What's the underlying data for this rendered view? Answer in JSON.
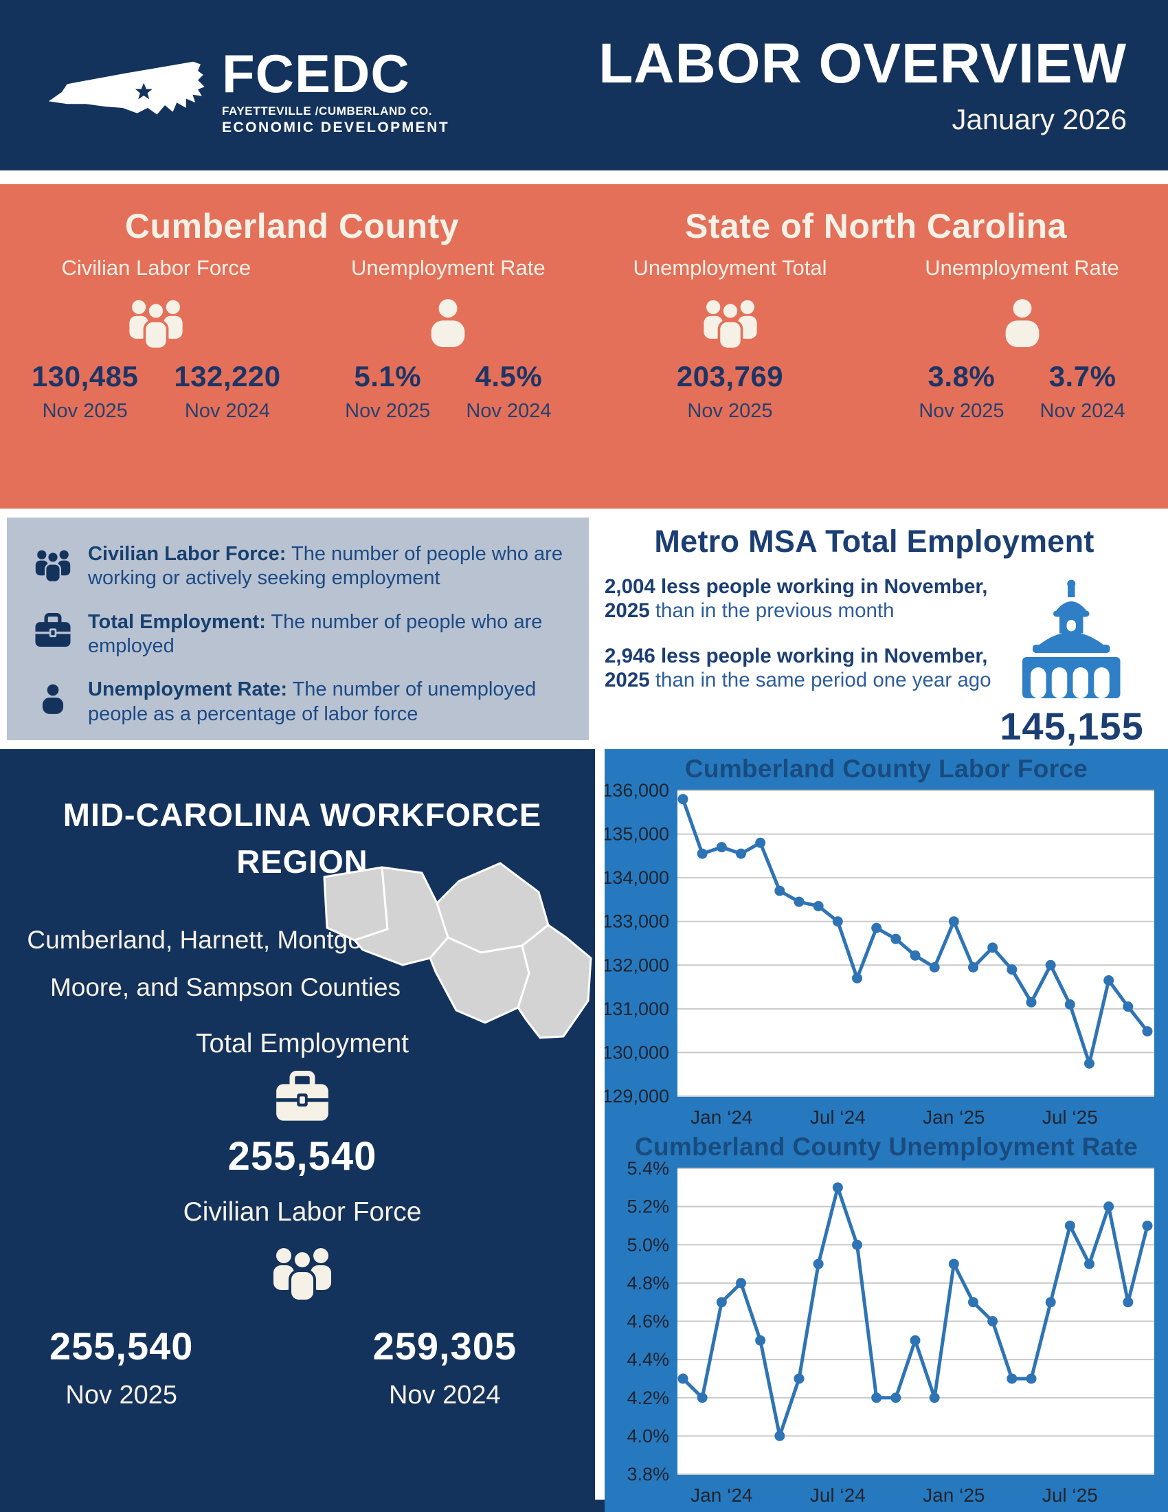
{
  "header": {
    "logo_acronym": "FCEDC",
    "logo_line1": "FAYETTEVILLE /CUMBERLAND CO.",
    "logo_line2": "ECONOMIC DEVELOPMENT",
    "title": "LABOR OVERVIEW",
    "date": "January 2026"
  },
  "county_section": {
    "title": "Cumberland County",
    "labor_force": {
      "label": "Civilian Labor Force",
      "values": [
        {
          "value": "130,485",
          "period": "Nov 2025"
        },
        {
          "value": "132,220",
          "period": "Nov 2024"
        }
      ]
    },
    "unemployment_rate": {
      "label": "Unemployment Rate",
      "values": [
        {
          "value": "5.1%",
          "period": "Nov 2025"
        },
        {
          "value": "4.5%",
          "period": "Nov 2024"
        }
      ]
    }
  },
  "state_section": {
    "title": "State of North Carolina",
    "unemployment_total": {
      "label": "Unemployment Total",
      "values": [
        {
          "value": "203,769",
          "period": "Nov 2025"
        }
      ]
    },
    "unemployment_rate": {
      "label": "Unemployment Rate",
      "values": [
        {
          "value": "3.8%",
          "period": "Nov 2025"
        },
        {
          "value": "3.7%",
          "period": "Nov 2024"
        }
      ]
    }
  },
  "definitions": [
    {
      "icon": "people-group-icon",
      "term": "Civilian Labor Force:",
      "text": " The number of people who are working or actively seeking employment"
    },
    {
      "icon": "briefcase-icon",
      "term": "Total Employment:",
      "text": " The number of people who are employed"
    },
    {
      "icon": "person-icon",
      "term": "Unemployment Rate:",
      "text": " The number of unemployed people as a percentage of labor force"
    }
  ],
  "metro": {
    "title": "Metro MSA Total Employment",
    "stat1_bold": "2,004 less people working in November, 2025",
    "stat1_rest": " than in the previous month",
    "stat2_bold": "2,946 less people working in November, 2025",
    "stat2_rest": " than in the same period one year ago",
    "landmark_icon": "market-house-icon",
    "total": "145,155"
  },
  "region": {
    "title": "MID-CAROLINA WORKFORCE REGION",
    "counties": "Cumberland, Harnett, Montgomery, Moore, and Sampson Counties",
    "total_employment": {
      "label": "Total Employment",
      "value": "255,540"
    },
    "labor_force": {
      "label": "Civilian Labor Force",
      "values": [
        {
          "value": "255,540",
          "period": "Nov 2025"
        },
        {
          "value": "259,305",
          "period": "Nov 2024"
        }
      ]
    }
  },
  "colors": {
    "navy": "#14335C",
    "salmon": "#E4705A",
    "cream": "#F6F1E6",
    "value_navy": "#1C3566",
    "gray_box": "#B8C2D1",
    "definition_blue": "#1C4A85",
    "blue_panel": "#2679BE",
    "chart_line": "#2E74B5",
    "building_blue": "#2F7FC6"
  },
  "chart_data": [
    {
      "type": "line",
      "title": "Cumberland County Labor Force",
      "ylabel": "",
      "xlabel": "",
      "ylim": [
        129000,
        136000
      ],
      "y_step": 1000,
      "grid": true,
      "y_tick_labels": [
        "136,000",
        "135,000",
        "134,000",
        "133,000",
        "132,000",
        "131,000",
        "130,000",
        "129,000"
      ],
      "x_ticks": [
        {
          "index": 2,
          "label": "Jan ‘24"
        },
        {
          "index": 8,
          "label": "Jul ‘24"
        },
        {
          "index": 14,
          "label": "Jan ‘25"
        },
        {
          "index": 20,
          "label": "Jul ‘25"
        }
      ],
      "period": "Nov 2023 – Nov 2025 (monthly)",
      "values": [
        135800,
        134550,
        134700,
        134550,
        134800,
        133700,
        133450,
        133350,
        133000,
        131700,
        132850,
        132600,
        132220,
        131950,
        133000,
        131950,
        132400,
        131900,
        131150,
        132000,
        131100,
        129750,
        131650,
        131050,
        130485
      ]
    },
    {
      "type": "line",
      "title": "Cumberland County Unemployment Rate",
      "ylabel": "",
      "xlabel": "",
      "ylim": [
        3.8,
        5.4
      ],
      "y_step": 0.2,
      "grid": true,
      "y_tick_labels": [
        "5.4%",
        "5.2%",
        "5.0%",
        "4.8%",
        "4.6%",
        "4.4%",
        "4.2%",
        "4.0%",
        "3.8%"
      ],
      "x_ticks": [
        {
          "index": 2,
          "label": "Jan ‘24"
        },
        {
          "index": 8,
          "label": "Jul ‘24"
        },
        {
          "index": 14,
          "label": "Jan ‘25"
        },
        {
          "index": 20,
          "label": "Jul ‘25"
        }
      ],
      "period": "Nov 2023 – Nov 2025 (monthly)",
      "values": [
        4.3,
        4.2,
        4.7,
        4.8,
        4.5,
        4.0,
        4.3,
        4.9,
        5.3,
        5.0,
        4.2,
        4.2,
        4.5,
        4.2,
        4.9,
        4.7,
        4.6,
        4.3,
        4.3,
        4.7,
        5.1,
        4.9,
        5.2,
        4.7,
        5.1
      ]
    }
  ]
}
